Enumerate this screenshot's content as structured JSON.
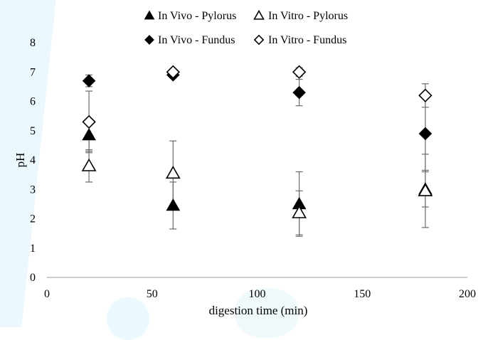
{
  "chart_data": {
    "type": "scatter",
    "xlabel": "digestion time (min)",
    "ylabel": "pH",
    "xlim": [
      0,
      200
    ],
    "ylim": [
      0,
      8
    ],
    "xticks": [
      0,
      50,
      100,
      150,
      200
    ],
    "yticks": [
      0,
      1,
      2,
      3,
      4,
      5,
      6,
      7,
      8
    ],
    "grid": false,
    "legend_position": "top",
    "series": [
      {
        "name": "In Vivo - Pylorus",
        "marker": "triangle-filled",
        "points": [
          {
            "x": 20,
            "y": 4.85,
            "err": 0.55
          },
          {
            "x": 60,
            "y": 2.45,
            "err": 0.8
          },
          {
            "x": 120,
            "y": 2.5,
            "err": 1.1
          },
          {
            "x": 180,
            "y": 3.0,
            "err": 0.6
          }
        ]
      },
      {
        "name": "In Vitro - Pylorus",
        "marker": "triangle-open",
        "points": [
          {
            "x": 20,
            "y": 3.8,
            "err": 0.55
          },
          {
            "x": 60,
            "y": 3.55,
            "err": 1.1
          },
          {
            "x": 120,
            "y": 2.2,
            "err": 0.75
          },
          {
            "x": 180,
            "y": 2.95,
            "err": 1.25
          }
        ]
      },
      {
        "name": "In Vivo - Fundus",
        "marker": "diamond-filled",
        "points": [
          {
            "x": 20,
            "y": 6.7,
            "err": 0.2
          },
          {
            "x": 60,
            "y": 6.9,
            "err": 0.1
          },
          {
            "x": 120,
            "y": 6.3,
            "err": 0.45
          },
          {
            "x": 180,
            "y": 4.9,
            "err": 1.25
          }
        ]
      },
      {
        "name": "In Vitro - Fundus",
        "marker": "diamond-open",
        "points": [
          {
            "x": 20,
            "y": 5.3,
            "err": 1.05
          },
          {
            "x": 60,
            "y": 7.0,
            "err": 0.1
          },
          {
            "x": 120,
            "y": 7.0,
            "err": 0.15
          },
          {
            "x": 180,
            "y": 6.2,
            "err": 0.4
          }
        ]
      }
    ]
  }
}
